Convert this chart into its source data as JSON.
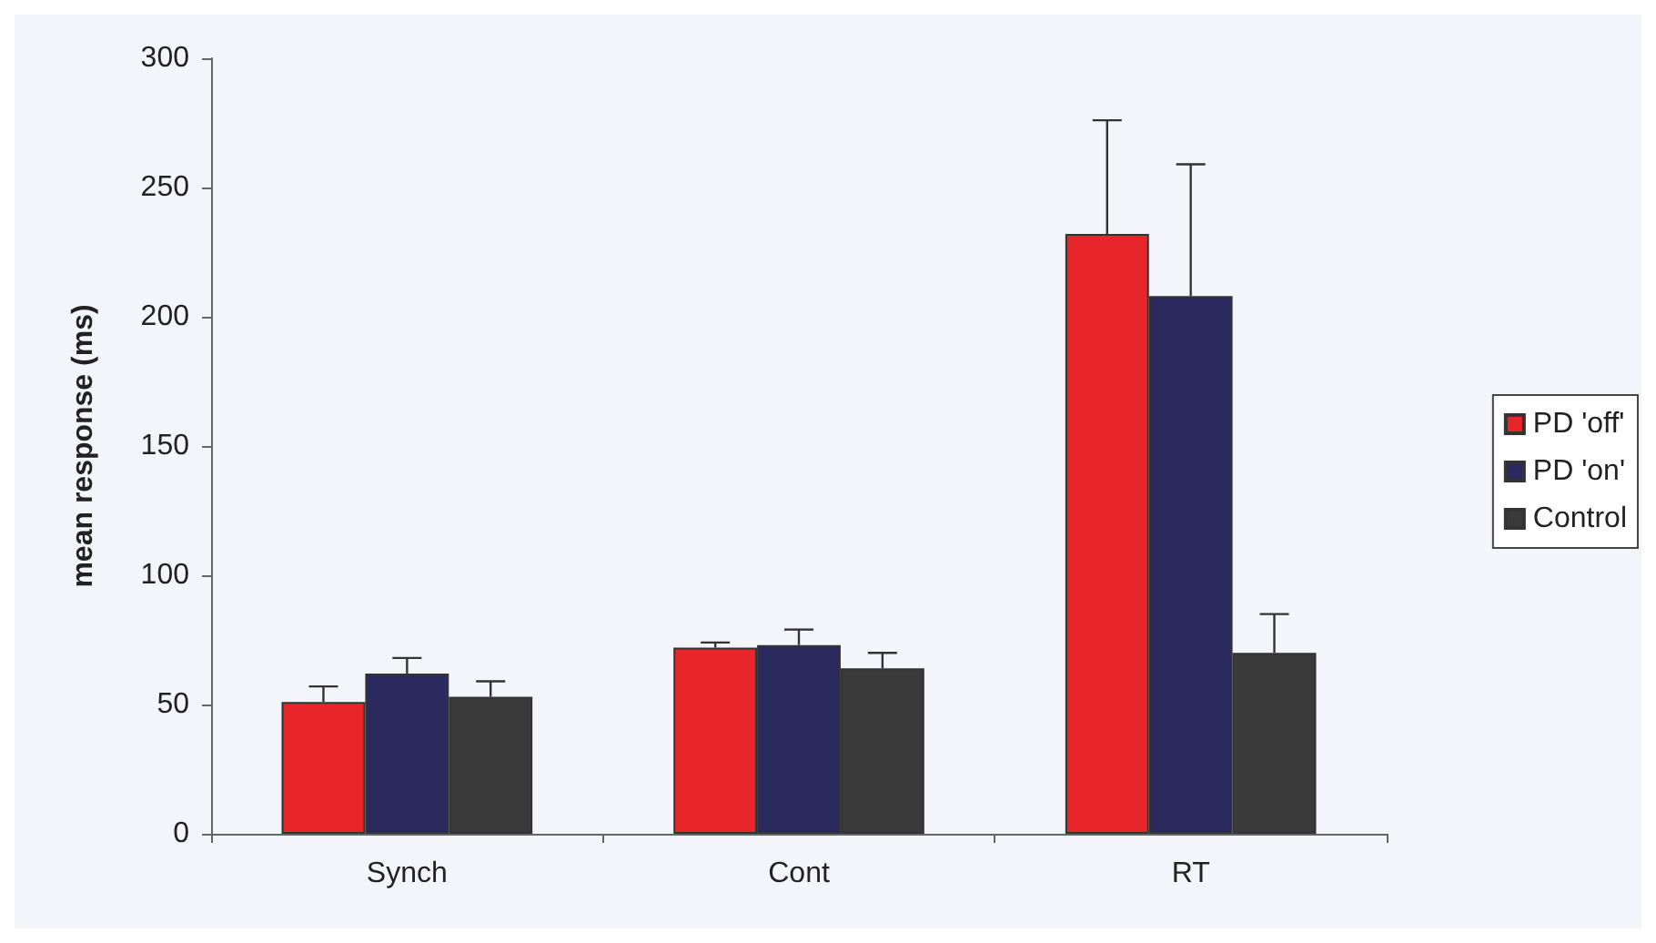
{
  "chart_data": {
    "type": "bar",
    "ylabel": "mean response (ms)",
    "categories": [
      "Synch",
      "Cont",
      "RT"
    ],
    "series": [
      {
        "name": "PD 'off'",
        "color": "#e8262a",
        "values": [
          51,
          72,
          232
        ],
        "errors": [
          [
            51,
            57
          ],
          [
            72,
            74
          ],
          [
            232,
            276
          ]
        ]
      },
      {
        "name": "PD 'on'",
        "color": "#2a2a5e",
        "values": [
          62,
          73,
          208
        ],
        "errors": [
          [
            62,
            68
          ],
          [
            73,
            79
          ],
          [
            208,
            259
          ]
        ]
      },
      {
        "name": "Control",
        "color": "#3a3a3a",
        "values": [
          53,
          64,
          70
        ],
        "errors": [
          [
            53,
            59
          ],
          [
            64,
            70
          ],
          [
            70,
            85
          ]
        ]
      }
    ],
    "ylim": [
      0,
      300
    ],
    "yticks": [
      0,
      50,
      100,
      150,
      200,
      250,
      300
    ],
    "grid": false,
    "legend": "right"
  }
}
